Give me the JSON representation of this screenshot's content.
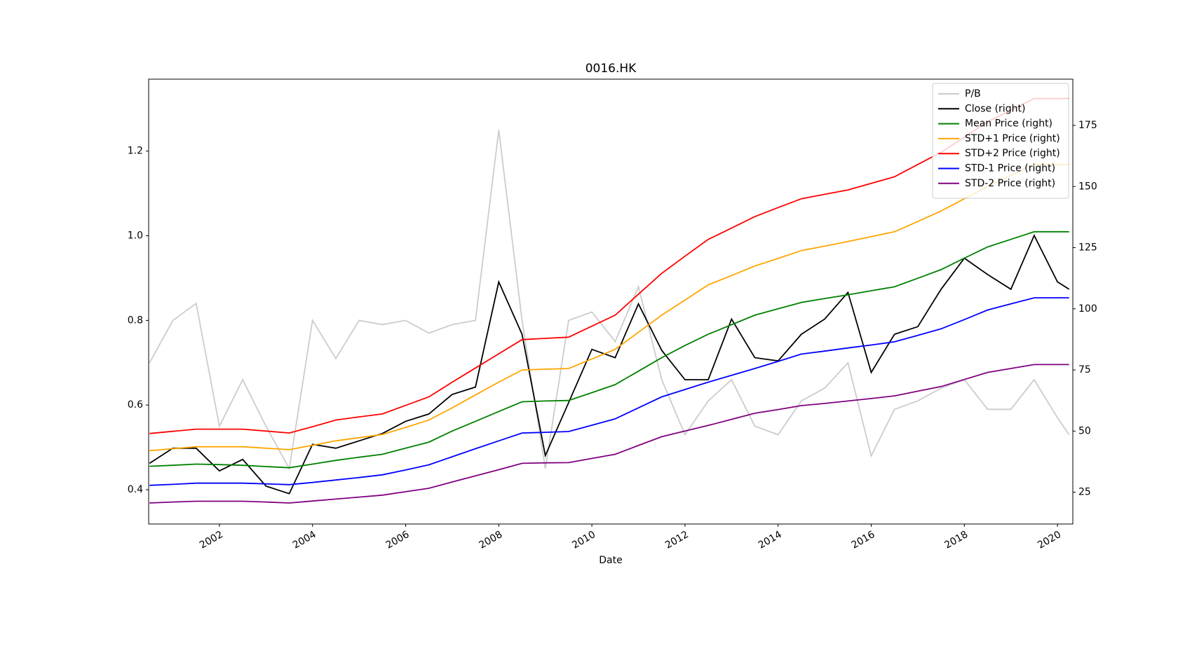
{
  "chart_data": {
    "type": "line",
    "title": "0016.HK",
    "x_label": "Date",
    "x": [
      2000.5,
      2001,
      2001.5,
      2002,
      2002.5,
      2003,
      2003.5,
      2004,
      2004.5,
      2005,
      2005.5,
      2006,
      2006.5,
      2007,
      2007.5,
      2008,
      2008.5,
      2009,
      2009.5,
      2010,
      2010.5,
      2011,
      2011.5,
      2012,
      2012.5,
      2013,
      2013.5,
      2014,
      2014.5,
      2015,
      2015.5,
      2016,
      2016.5,
      2017,
      2017.5,
      2018,
      2018.5,
      2019,
      2019.5,
      2020,
      2020.25
    ],
    "xlim": [
      2000.48,
      2020.33
    ],
    "xticks": [
      2002,
      2004,
      2006,
      2008,
      2010,
      2012,
      2014,
      2016,
      2018,
      2020
    ],
    "ylim": [
      0.319,
      1.37
    ],
    "yticks": [
      0.4,
      0.6,
      0.8,
      {
        "value": 1,
        "label": "1.0"
      },
      1.2
    ],
    "y2lim": [
      12,
      193.9
    ],
    "y2ticks": [
      25,
      50,
      75,
      100,
      125,
      150,
      175
    ],
    "legend": "upper right",
    "grid": false,
    "series": [
      {
        "name": "P/B",
        "color": "#cccccc",
        "values": [
          0.7,
          0.8,
          0.84,
          0.55,
          0.66,
          0.55,
          0.45,
          0.8,
          0.71,
          0.8,
          0.79,
          0.8,
          0.77,
          0.79,
          0.8,
          1.25,
          0.8,
          0.45,
          0.8,
          0.82,
          0.75,
          0.88,
          0.66,
          0.53,
          0.61,
          0.66,
          0.55,
          0.53,
          0.61,
          0.64,
          0.7,
          0.48,
          0.59,
          0.61,
          0.64,
          0.66,
          0.59,
          0.59,
          0.66,
          0.57,
          0.53
        ]
      },
      {
        "name": "Close (right)",
        "color": "#000000",
        "axis": "y2",
        "values": [
          36.8,
          43,
          43,
          33.7,
          38.4,
          27.5,
          24.4,
          44.6,
          43,
          46,
          49,
          54,
          57,
          65,
          68,
          111,
          89.6,
          40,
          61.6,
          83.4,
          80,
          102,
          83,
          71,
          71,
          95.8,
          80,
          78.7,
          89.6,
          95.8,
          106.7,
          74,
          89.6,
          92.7,
          108,
          120.7,
          114,
          108,
          130,
          111,
          108
        ]
      },
      {
        "name": "Mean Price (right)",
        "color": "#008000",
        "axis": "y2",
        "values": [
          35.6,
          36,
          36.5,
          36.3,
          36,
          35.5,
          35,
          36.5,
          38,
          39.3,
          40.5,
          43,
          45.5,
          50,
          54,
          58,
          62,
          62.3,
          62.5,
          65.7,
          69,
          74.5,
          80,
          85,
          89.6,
          93.5,
          97.4,
          100,
          102.6,
          104.2,
          105.7,
          107.4,
          109,
          112.5,
          116,
          120.7,
          125.3,
          128.4,
          131.5,
          131.5,
          131.5
        ]
      },
      {
        "name": "STD+1 Price (right)",
        "color": "#ffa500",
        "axis": "y2",
        "values": [
          42,
          42.8,
          43.6,
          43.6,
          43.6,
          43,
          42.4,
          44.2,
          46,
          47.3,
          48.6,
          51.5,
          54.5,
          59.5,
          64.8,
          70,
          75,
          75.3,
          75.6,
          79.5,
          83.4,
          90.4,
          97.4,
          103.6,
          109.8,
          113.6,
          117.5,
          120.6,
          123.8,
          125.6,
          127.5,
          129.5,
          131.5,
          135.7,
          140,
          145,
          150,
          154.5,
          159,
          159,
          159
        ]
      },
      {
        "name": "STD+2 Price (right)",
        "color": "#ff0000",
        "axis": "y2",
        "values": [
          49,
          49.9,
          50.8,
          50.8,
          50.8,
          50,
          49.2,
          51.8,
          54.5,
          55.8,
          57,
          60.5,
          64,
          70,
          75.8,
          81.6,
          87.4,
          87.9,
          88.4,
          92.9,
          97.4,
          106,
          114.5,
          121.5,
          128.4,
          133,
          137.7,
          141.4,
          145,
          146.8,
          148.6,
          151.3,
          154,
          159,
          164,
          170.2,
          176.5,
          181.2,
          186,
          186,
          186
        ]
      },
      {
        "name": "STD-1 Price (right)",
        "color": "#0000ff",
        "axis": "y2",
        "values": [
          27.8,
          28.2,
          28.7,
          28.7,
          28.7,
          28.4,
          28.1,
          29,
          30,
          31,
          32.1,
          34.1,
          36.2,
          39.5,
          42.8,
          46,
          49.2,
          49.5,
          49.8,
          52.4,
          55,
          59.5,
          64,
          67,
          70,
          72.8,
          75.6,
          78.5,
          81.5,
          82.7,
          84,
          85.2,
          86.5,
          89.1,
          91.8,
          95.6,
          99.5,
          102,
          104.5,
          104.5,
          104.5
        ]
      },
      {
        "name": "STD-2 Price (right)",
        "color": "#800080",
        "axis": "y2",
        "values": [
          20.6,
          21,
          21.3,
          21.3,
          21.3,
          21,
          20.6,
          21.4,
          22.2,
          23,
          23.8,
          25.2,
          26.6,
          29.2,
          31.7,
          34.2,
          36.8,
          37,
          37.1,
          38.8,
          40.5,
          44.1,
          47.7,
          50,
          52.3,
          54.8,
          57.3,
          58.8,
          60.4,
          61.3,
          62.3,
          63.3,
          64.4,
          66.3,
          68.2,
          71.1,
          74,
          75.6,
          77.2,
          77.2,
          77.2
        ]
      }
    ]
  }
}
